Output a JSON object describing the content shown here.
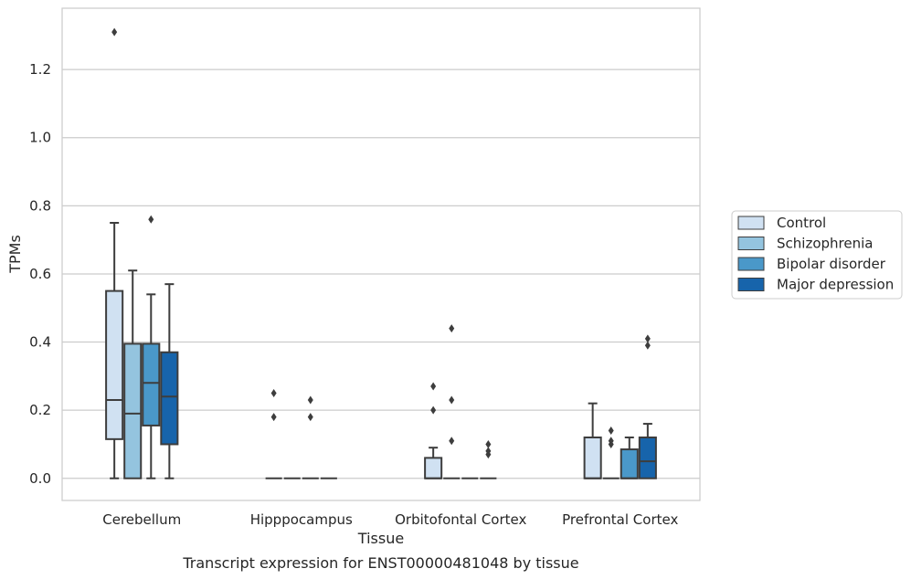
{
  "caption": "Transcript expression for ENST00000481048 by tissue",
  "chart_data": {
    "type": "box",
    "xlabel": "Tissue",
    "ylabel": "TPMs",
    "ylim": [
      -0.065,
      1.38
    ],
    "yticks": [
      0.0,
      0.2,
      0.4,
      0.6,
      0.8,
      1.0,
      1.2
    ],
    "ytick_labels": [
      "0.0",
      "0.2",
      "0.4",
      "0.6",
      "0.8",
      "1.0",
      "1.2"
    ],
    "grid": "horizontal",
    "legend_placement": "right",
    "categories": [
      "Cerebellum",
      "Hipppocampus",
      "Orbitofontal Cortex",
      "Prefrontal Cortex"
    ],
    "series": [
      {
        "name": "Control",
        "color": "#d0e1f2",
        "boxes": [
          {
            "whislo": 0.0,
            "q1": 0.115,
            "med": 0.23,
            "q3": 0.55,
            "whishi": 0.75,
            "fliers": [
              1.31
            ]
          },
          {
            "whislo": 0.0,
            "q1": 0.0,
            "med": 0.0,
            "q3": 0.0,
            "whishi": 0.0,
            "fliers": [
              0.18,
              0.25
            ]
          },
          {
            "whislo": 0.0,
            "q1": 0.0,
            "med": 0.0,
            "q3": 0.06,
            "whishi": 0.09,
            "fliers": [
              0.2,
              0.27
            ]
          },
          {
            "whislo": 0.0,
            "q1": 0.0,
            "med": 0.0,
            "q3": 0.12,
            "whishi": 0.22,
            "fliers": []
          }
        ]
      },
      {
        "name": "Schizophrenia",
        "color": "#94c4df",
        "boxes": [
          {
            "whislo": 0.0,
            "q1": 0.0,
            "med": 0.19,
            "q3": 0.395,
            "whishi": 0.61,
            "fliers": []
          },
          {
            "whislo": 0.0,
            "q1": 0.0,
            "med": 0.0,
            "q3": 0.0,
            "whishi": 0.0,
            "fliers": []
          },
          {
            "whislo": 0.0,
            "q1": 0.0,
            "med": 0.0,
            "q3": 0.0,
            "whishi": 0.0,
            "fliers": [
              0.11,
              0.23,
              0.44
            ]
          },
          {
            "whislo": 0.0,
            "q1": 0.0,
            "med": 0.0,
            "q3": 0.0,
            "whishi": 0.0,
            "fliers": [
              0.1,
              0.11,
              0.14
            ]
          }
        ]
      },
      {
        "name": "Bipolar disorder",
        "color": "#4a98c9",
        "boxes": [
          {
            "whislo": 0.0,
            "q1": 0.155,
            "med": 0.28,
            "q3": 0.395,
            "whishi": 0.54,
            "fliers": [
              0.76
            ]
          },
          {
            "whislo": 0.0,
            "q1": 0.0,
            "med": 0.0,
            "q3": 0.0,
            "whishi": 0.0,
            "fliers": [
              0.18,
              0.23
            ]
          },
          {
            "whislo": 0.0,
            "q1": 0.0,
            "med": 0.0,
            "q3": 0.0,
            "whishi": 0.0,
            "fliers": []
          },
          {
            "whislo": 0.0,
            "q1": 0.0,
            "med": 0.0,
            "q3": 0.085,
            "whishi": 0.12,
            "fliers": []
          }
        ]
      },
      {
        "name": "Major depression",
        "color": "#1764ab",
        "boxes": [
          {
            "whislo": 0.0,
            "q1": 0.1,
            "med": 0.24,
            "q3": 0.37,
            "whishi": 0.57,
            "fliers": []
          },
          {
            "whislo": 0.0,
            "q1": 0.0,
            "med": 0.0,
            "q3": 0.0,
            "whishi": 0.0,
            "fliers": []
          },
          {
            "whislo": 0.0,
            "q1": 0.0,
            "med": 0.0,
            "q3": 0.0,
            "whishi": 0.0,
            "fliers": [
              0.07,
              0.08,
              0.1
            ]
          },
          {
            "whislo": 0.0,
            "q1": 0.0,
            "med": 0.05,
            "q3": 0.12,
            "whishi": 0.16,
            "fliers": [
              0.39,
              0.41
            ]
          }
        ]
      }
    ]
  }
}
